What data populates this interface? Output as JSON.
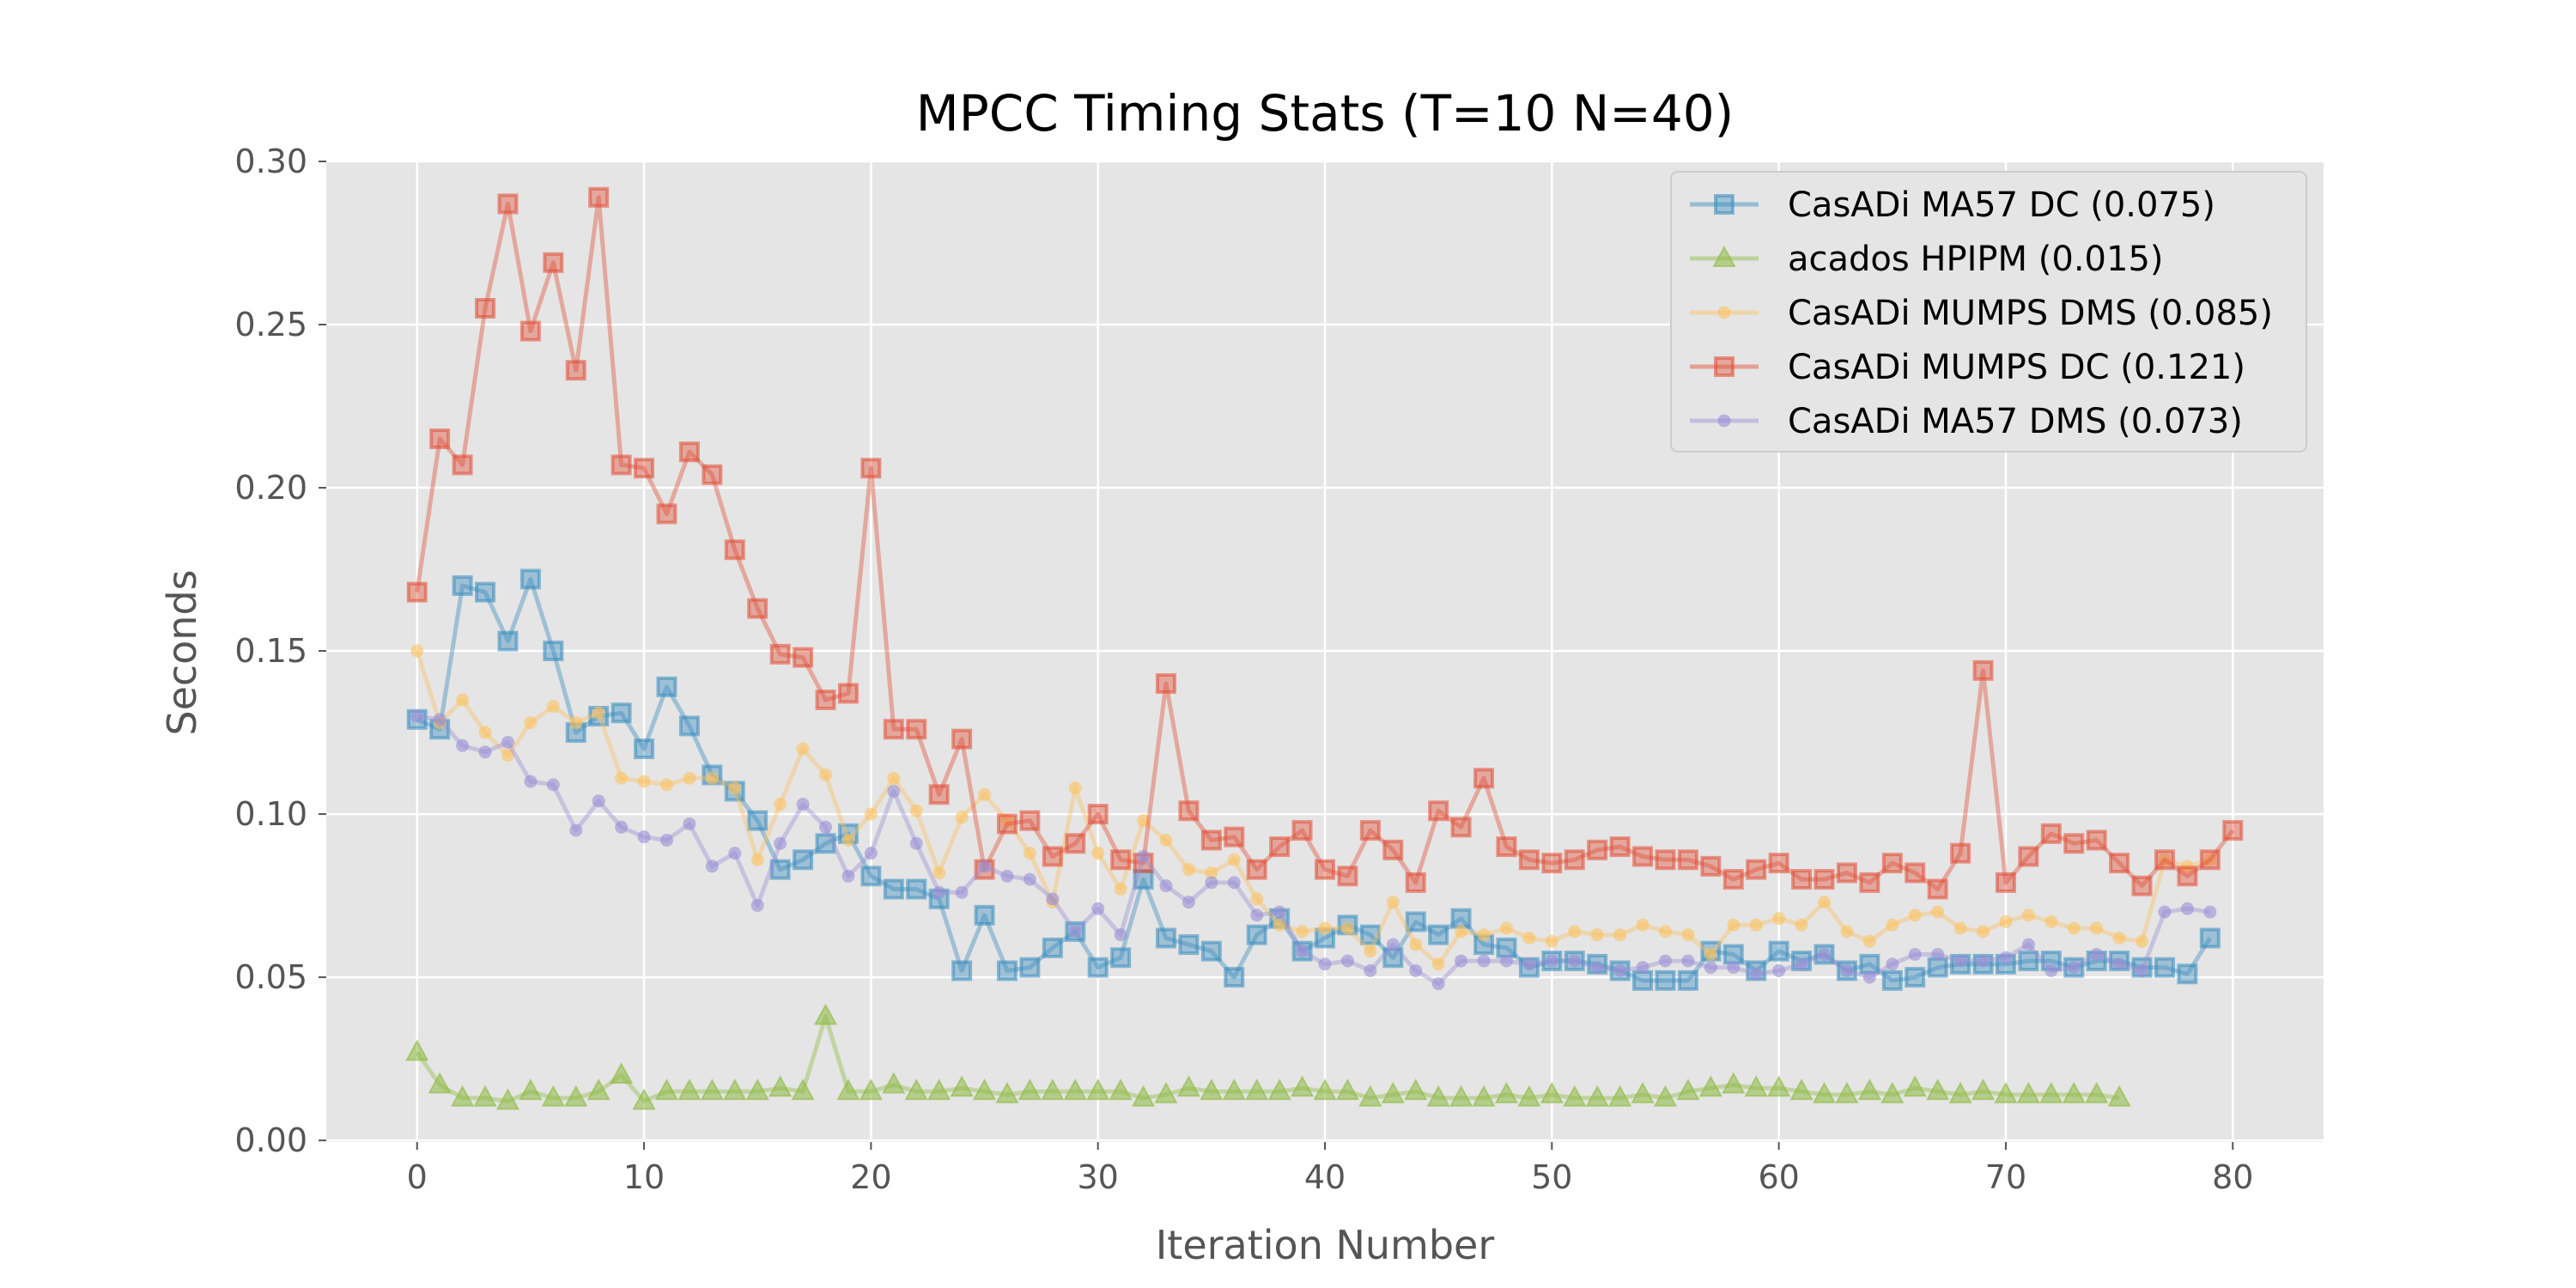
{
  "chart_data": {
    "type": "line",
    "title": "MPCC Timing Stats (T=10 N=40)",
    "xlabel": "Iteration Number",
    "ylabel": "Seconds",
    "xlim": [
      -4,
      84
    ],
    "ylim": [
      -0.0005,
      0.3
    ],
    "xticks": [
      "0",
      "10",
      "20",
      "30",
      "40",
      "50",
      "60",
      "70",
      "80"
    ],
    "yticks": [
      "0.00",
      "0.05",
      "0.10",
      "0.15",
      "0.20",
      "0.25",
      "0.30"
    ],
    "grid": true,
    "legend_position": "top-right",
    "background": "#e5e5e5",
    "series": [
      {
        "name": "CasADi MA57 DC (0.075)",
        "color": "#348abd",
        "marker": "square",
        "values": [
          0.129,
          0.126,
          0.17,
          0.168,
          0.153,
          0.172,
          0.15,
          0.125,
          0.13,
          0.131,
          0.12,
          0.139,
          0.127,
          0.112,
          0.107,
          0.098,
          0.083,
          0.086,
          0.091,
          0.094,
          0.081,
          0.077,
          0.077,
          0.074,
          0.052,
          0.069,
          0.052,
          0.053,
          0.059,
          0.064,
          0.053,
          0.056,
          0.08,
          0.062,
          0.06,
          0.058,
          0.05,
          0.063,
          0.068,
          0.058,
          0.062,
          0.066,
          0.063,
          0.056,
          0.067,
          0.063,
          0.068,
          0.06,
          0.059,
          0.053,
          0.055,
          0.055,
          0.054,
          0.052,
          0.049,
          0.049,
          0.049,
          0.058,
          0.057,
          0.052,
          0.058,
          0.055,
          0.057,
          0.052,
          0.054,
          0.049,
          0.05,
          0.053,
          0.054,
          0.054,
          0.054,
          0.055,
          0.055,
          0.053,
          0.055,
          0.055,
          0.053,
          0.053,
          0.051,
          0.062
        ]
      },
      {
        "name": "acados HPIPM (0.015)",
        "color": "#8eba42",
        "marker": "triangle",
        "values": [
          0.027,
          0.017,
          0.013,
          0.013,
          0.012,
          0.015,
          0.013,
          0.013,
          0.015,
          0.02,
          0.012,
          0.015,
          0.015,
          0.015,
          0.015,
          0.015,
          0.016,
          0.015,
          0.038,
          0.015,
          0.015,
          0.017,
          0.015,
          0.015,
          0.016,
          0.015,
          0.014,
          0.015,
          0.015,
          0.015,
          0.015,
          0.015,
          0.013,
          0.014,
          0.016,
          0.015,
          0.015,
          0.015,
          0.015,
          0.016,
          0.015,
          0.015,
          0.013,
          0.014,
          0.015,
          0.013,
          0.013,
          0.013,
          0.014,
          0.013,
          0.014,
          0.013,
          0.013,
          0.013,
          0.014,
          0.013,
          0.015,
          0.016,
          0.017,
          0.016,
          0.016,
          0.015,
          0.014,
          0.014,
          0.015,
          0.014,
          0.016,
          0.015,
          0.014,
          0.015,
          0.014,
          0.014,
          0.014,
          0.014,
          0.014,
          0.013
        ]
      },
      {
        "name": "CasADi MUMPS DMS (0.085)",
        "color": "#fbc15e",
        "marker": "circle",
        "values": [
          0.15,
          0.128,
          0.135,
          0.125,
          0.118,
          0.128,
          0.133,
          0.128,
          0.131,
          0.111,
          0.11,
          0.109,
          0.111,
          0.111,
          0.108,
          0.086,
          0.103,
          0.12,
          0.112,
          0.092,
          0.1,
          0.111,
          0.101,
          0.082,
          0.099,
          0.106,
          0.098,
          0.088,
          0.073,
          0.108,
          0.088,
          0.077,
          0.098,
          0.092,
          0.083,
          0.082,
          0.086,
          0.074,
          0.066,
          0.064,
          0.065,
          0.065,
          0.058,
          0.073,
          0.06,
          0.054,
          0.064,
          0.063,
          0.065,
          0.062,
          0.061,
          0.064,
          0.063,
          0.063,
          0.066,
          0.064,
          0.063,
          0.057,
          0.066,
          0.066,
          0.068,
          0.066,
          0.073,
          0.064,
          0.061,
          0.066,
          0.069,
          0.07,
          0.065,
          0.064,
          0.067,
          0.069,
          0.067,
          0.065,
          0.065,
          0.062,
          0.061,
          0.086,
          0.084,
          0.086
        ]
      },
      {
        "name": "CasADi MUMPS DC (0.121)",
        "color": "#e24a33",
        "marker": "square",
        "values": [
          0.168,
          0.215,
          0.207,
          0.255,
          0.287,
          0.248,
          0.269,
          0.236,
          0.289,
          0.207,
          0.206,
          0.192,
          0.211,
          0.204,
          0.181,
          0.163,
          0.149,
          0.148,
          0.135,
          0.137,
          0.206,
          0.126,
          0.126,
          0.106,
          0.123,
          0.083,
          0.097,
          0.098,
          0.087,
          0.091,
          0.1,
          0.086,
          0.085,
          0.14,
          0.101,
          0.092,
          0.093,
          0.083,
          0.09,
          0.095,
          0.083,
          0.081,
          0.095,
          0.089,
          0.079,
          0.101,
          0.096,
          0.111,
          0.09,
          0.086,
          0.085,
          0.086,
          0.089,
          0.09,
          0.087,
          0.086,
          0.086,
          0.084,
          0.08,
          0.083,
          0.085,
          0.08,
          0.08,
          0.082,
          0.079,
          0.085,
          0.082,
          0.077,
          0.088,
          0.144,
          0.079,
          0.087,
          0.094,
          0.091,
          0.092,
          0.085,
          0.078,
          0.086,
          0.081,
          0.086,
          0.095
        ]
      },
      {
        "name": "CasADi MA57 DMS (0.073)",
        "color": "#988ed5",
        "marker": "circle",
        "values": [
          0.13,
          0.129,
          0.121,
          0.119,
          0.122,
          0.11,
          0.109,
          0.095,
          0.104,
          0.096,
          0.093,
          0.092,
          0.097,
          0.084,
          0.088,
          0.072,
          0.091,
          0.103,
          0.096,
          0.081,
          0.088,
          0.107,
          0.091,
          0.076,
          0.076,
          0.084,
          0.081,
          0.08,
          0.074,
          0.064,
          0.071,
          0.063,
          0.087,
          0.078,
          0.073,
          0.079,
          0.079,
          0.069,
          0.07,
          0.058,
          0.054,
          0.055,
          0.052,
          0.06,
          0.052,
          0.048,
          0.055,
          0.055,
          0.055,
          0.054,
          0.055,
          0.055,
          0.053,
          0.052,
          0.053,
          0.055,
          0.055,
          0.053,
          0.053,
          0.051,
          0.052,
          0.054,
          0.057,
          0.052,
          0.05,
          0.054,
          0.057,
          0.057,
          0.055,
          0.055,
          0.056,
          0.06,
          0.052,
          0.053,
          0.057,
          0.054,
          0.052,
          0.07,
          0.071,
          0.07
        ]
      }
    ]
  }
}
